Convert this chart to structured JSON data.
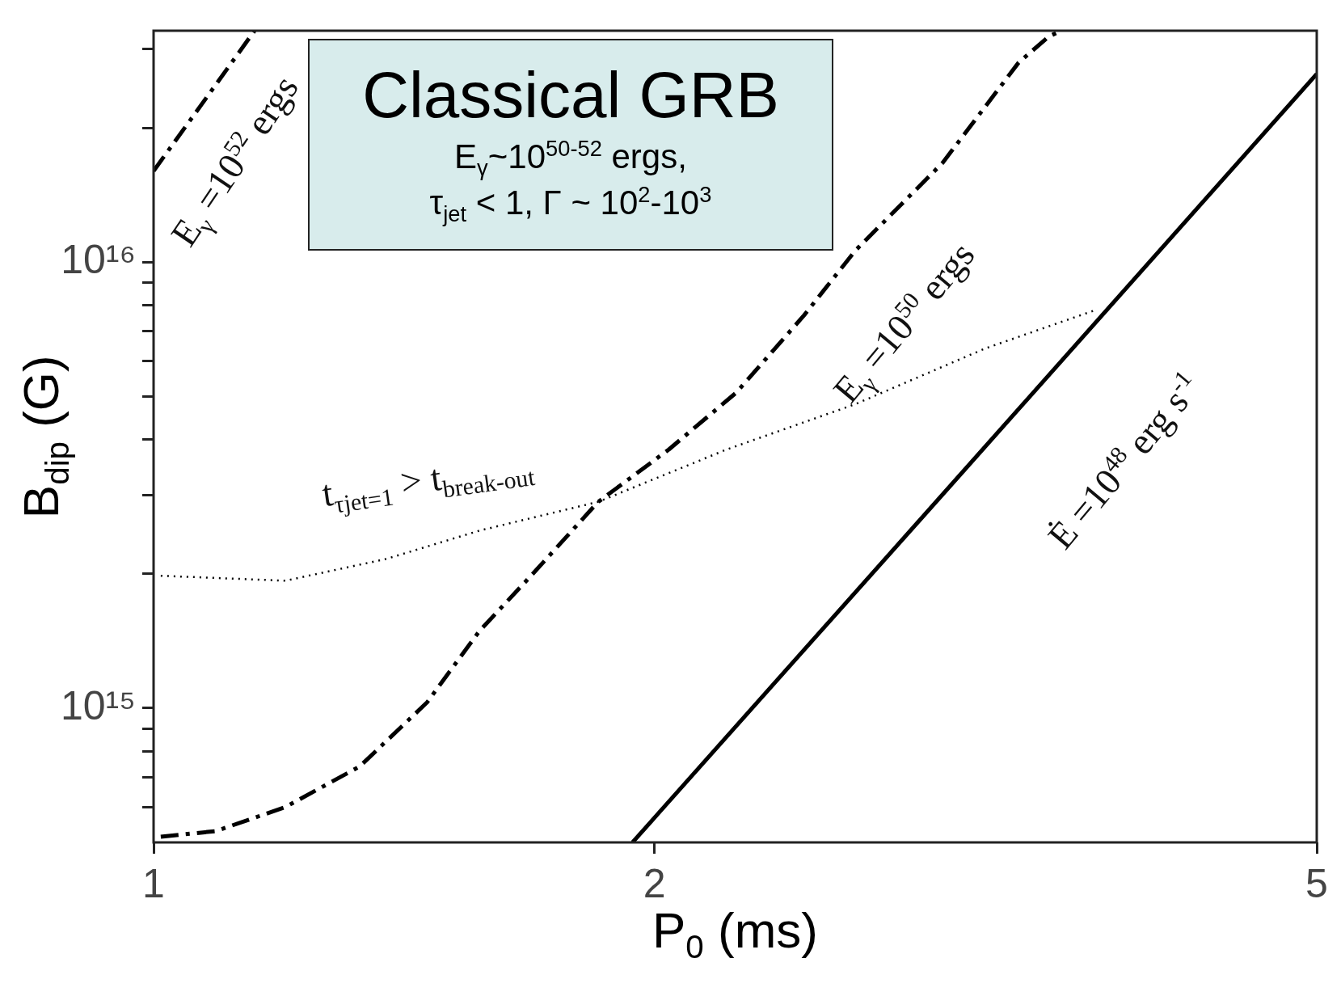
{
  "chart_data": {
    "type": "line",
    "xlabel": "P$_{0}$ (ms)",
    "ylabel": "B$_{dip}$ (G)",
    "log": "xy",
    "grid": false,
    "legend": false,
    "marker": "none",
    "xlim": [
      1,
      5
    ],
    "ylim": [
      500000000000000.0,
      3.3e+16
    ],
    "xticks": [
      1,
      2,
      5
    ],
    "yticks": [
      {
        "value": 600000000000000.0,
        "label": null
      },
      {
        "value": 700000000000000.0,
        "label": null
      },
      {
        "value": 800000000000000.0,
        "label": null
      },
      {
        "value": 900000000000000.0,
        "label": null
      },
      {
        "value": 1000000000000000.0,
        "label": "10¹⁵"
      },
      {
        "value": 2000000000000000.0,
        "label": null
      },
      {
        "value": 3000000000000000.0,
        "label": null
      },
      {
        "value": 4000000000000000.0,
        "label": null
      },
      {
        "value": 5000000000000000.0,
        "label": null
      },
      {
        "value": 6000000000000000.0,
        "label": null
      },
      {
        "value": 7000000000000000.0,
        "label": null
      },
      {
        "value": 8000000000000000.0,
        "label": null
      },
      {
        "value": 9000000000000000.0,
        "label": null
      },
      {
        "value": 1e+16,
        "label": "10¹⁶"
      },
      {
        "value": 2e+16,
        "label": null
      },
      {
        "value": 3e+16,
        "label": null
      }
    ],
    "series": [
      {
        "color": "#000000",
        "line_style": "dashed",
        "x": [
          1.0,
          1.07,
          1.15
        ],
        "values": [
          1.6e+16,
          2.27e+16,
          3.3e+16
        ]
      },
      {
        "color": "#000000",
        "line_style": "dashed",
        "x": [
          1.01,
          1.09,
          1.2,
          1.33,
          1.46,
          1.57,
          1.69,
          1.85,
          2.04,
          2.24,
          2.46,
          2.64,
          2.98,
          3.31,
          3.45,
          3.51
        ],
        "values": [
          515000000000000.0,
          530000000000000.0,
          600000000000000.0,
          740000000000000.0,
          1030000000000000.0,
          1490000000000000.0,
          2000000000000000.0,
          2900000000000000.0,
          3800000000000000.0,
          5100000000000000.0,
          7600000000000000.0,
          1.06e+16,
          1.67e+16,
          2.8e+16,
          3.2e+16,
          3.3e+16
        ]
      },
      {
        "color": "#000000",
        "line_style": "solid",
        "x": [
          1.94,
          2.01,
          3.0,
          5.0
        ],
        "values": [
          500000000000000.0,
          580000000000000.0,
          3100000000000000.0,
          2.64e+16
        ]
      },
      {
        "color": "#000000",
        "line_style": "dotted",
        "x": [
          1.01,
          1.2,
          1.38,
          1.57,
          1.85,
          2.21,
          2.64,
          3.16,
          3.68
        ],
        "values": [
          1980000000000000.0,
          1930000000000000.0,
          2160000000000000.0,
          2500000000000000.0,
          2900000000000000.0,
          3800000000000000.0,
          4800000000000000.0,
          6400000000000000.0,
          7800000000000000.0
        ]
      }
    ],
    "annotations": [
      "Classical GRB",
      "E$_{γ}$~10$^{50-52}$ ergs,",
      "τ$_{jet}$ < 1, Γ ~ 10$^{2}$-10$^{3}$",
      "E$_{γ}$ =10$^{52}$ ergs",
      "E$_{γ}$ =10$^{50}$ ergs",
      "Ė =10$^{48}$ erg s$^{-1}$",
      "t$_{τjet=1}$ > t$_{break-out}$"
    ]
  }
}
